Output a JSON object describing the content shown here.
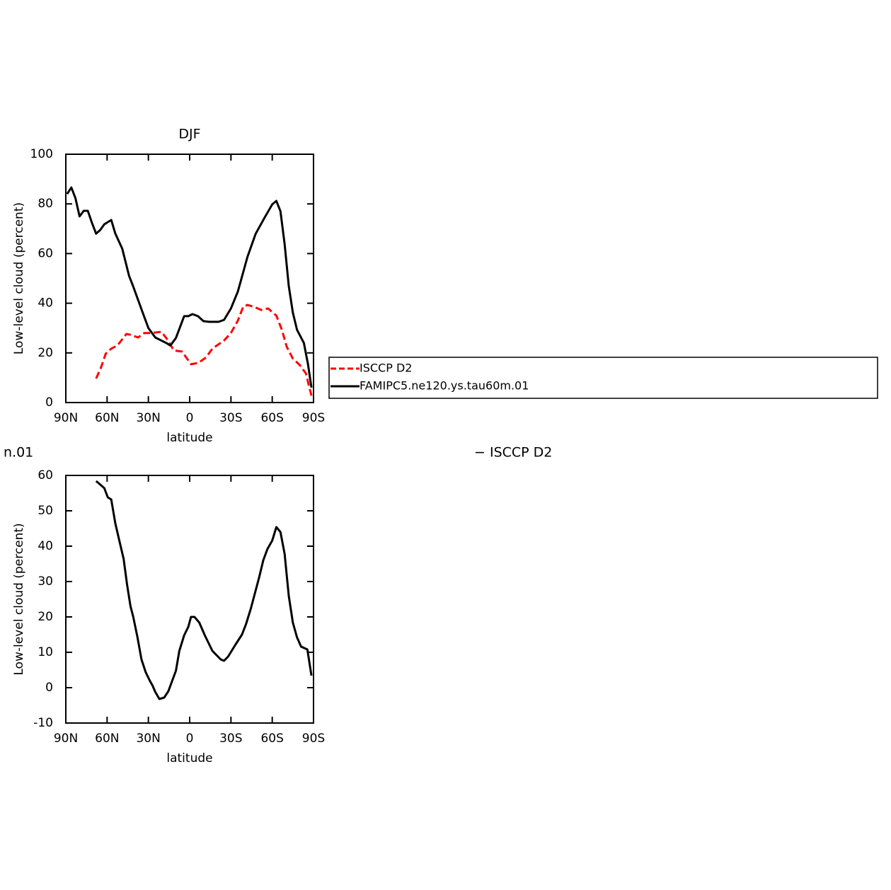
{
  "chart_data": [
    {
      "type": "line",
      "title": "DJF",
      "xlabel": "latitude",
      "ylabel": "Low-level cloud (percent)",
      "xlim": [
        90,
        -90
      ],
      "xticks": [
        {
          "value": 90,
          "label": "90N"
        },
        {
          "value": 60,
          "label": "60N"
        },
        {
          "value": 30,
          "label": "30N"
        },
        0,
        {
          "value": -30,
          "label": "30S"
        },
        {
          "value": -60,
          "label": "60S"
        },
        {
          "value": -90,
          "label": "90S"
        }
      ],
      "ylim": [
        0,
        100
      ],
      "yticks": [
        0,
        20,
        40,
        60,
        80,
        100
      ],
      "series": [
        {
          "name": "ISCCP D2",
          "color": "#ff0000",
          "linestyle": "dashed",
          "x": [
            68,
            64.5,
            61,
            57,
            52.5,
            46,
            43,
            37.5,
            33,
            28,
            20.5,
            16.5,
            11.5,
            5.5,
            -1,
            -6.5,
            -12,
            -16.5,
            -25,
            -30,
            -35,
            -39,
            -42,
            -47,
            -52,
            -57,
            -63,
            -67,
            -70.5,
            -75,
            -80,
            -84.5,
            -87,
            -88.5
          ],
          "values": [
            9.7,
            14,
            19.7,
            21.7,
            23,
            27.6,
            27.3,
            26.2,
            28,
            28,
            28.5,
            25.6,
            21,
            20.5,
            15.4,
            16,
            18.2,
            21.7,
            25,
            28,
            33,
            38.7,
            39.3,
            38.5,
            37.3,
            37.9,
            35,
            29.3,
            22.5,
            17.7,
            15.1,
            11.7,
            6,
            2.8
          ]
        },
        {
          "name": "FAMIPC5.ne120.ys.tau60m.01",
          "color": "#000000",
          "linestyle": "solid",
          "x": [
            89,
            86,
            83,
            80,
            77,
            74,
            71,
            68,
            65,
            62,
            57,
            54,
            49,
            44,
            41,
            34,
            30,
            25,
            17,
            14,
            10,
            4,
            1,
            -2,
            -6,
            -10,
            -14,
            -21,
            -25,
            -30,
            -35,
            -42,
            -48,
            -55,
            -60,
            -63,
            -66,
            -69,
            -72,
            -75,
            -78,
            -83,
            -86,
            -88.5
          ],
          "values": [
            84,
            86.6,
            82.3,
            75,
            77.2,
            77.2,
            72.4,
            68,
            69.5,
            71.8,
            73.5,
            68,
            62,
            51,
            46.7,
            36,
            30,
            26.2,
            24,
            23,
            26,
            34.8,
            34.8,
            35.6,
            34.8,
            32.8,
            32.5,
            32.5,
            33.3,
            37.9,
            44.7,
            58.7,
            68,
            75,
            79.8,
            81.2,
            77,
            63.8,
            47,
            36.2,
            29.3,
            24,
            15.4,
            6
          ]
        }
      ]
    },
    {
      "type": "line",
      "annotations": [
        "n.01",
        "− ISCCP D2"
      ],
      "xlabel": "latitude",
      "ylabel": "Low-level cloud (percent)",
      "xlim": [
        90,
        -90
      ],
      "xticks": [
        {
          "value": 90,
          "label": "90N"
        },
        {
          "value": 60,
          "label": "60N"
        },
        {
          "value": 30,
          "label": "30N"
        },
        0,
        {
          "value": -30,
          "label": "30S"
        },
        {
          "value": -60,
          "label": "60S"
        },
        {
          "value": -90,
          "label": "90S"
        }
      ],
      "ylim": [
        -10,
        60
      ],
      "yticks": [
        -10,
        0,
        10,
        20,
        30,
        40,
        50,
        60
      ],
      "series": [
        {
          "color": "#000000",
          "linestyle": "solid",
          "x": [
            68,
            65.5,
            62,
            59.5,
            57,
            54,
            51,
            48,
            45.5,
            43,
            41,
            38,
            35,
            32,
            29,
            27,
            25,
            22,
            18.5,
            15.5,
            10,
            7.5,
            4,
            1,
            -1,
            -3.5,
            -7,
            -11,
            -16.5,
            -22.5,
            -25,
            -28,
            -33,
            -38,
            -41,
            -44.5,
            -50.5,
            -53.5,
            -56.5,
            -60,
            -63,
            -66,
            -69,
            -72,
            -75,
            -78,
            -81,
            -85.5,
            -88.5
          ],
          "values": [
            58.4,
            57.6,
            56.4,
            53.8,
            53.2,
            46.4,
            41.4,
            36.4,
            29.2,
            23,
            20,
            14.4,
            8,
            4.4,
            2,
            0.6,
            -1.2,
            -3.2,
            -2.8,
            -1,
            4.8,
            10.4,
            14.8,
            17.2,
            20,
            20,
            18.4,
            14.8,
            10.4,
            8,
            7.6,
            8.8,
            12,
            15,
            18,
            22.4,
            31.2,
            36,
            39.2,
            41.6,
            45.4,
            44,
            37.8,
            26,
            18.4,
            14.2,
            11.6,
            10.8,
            3.4
          ]
        }
      ]
    }
  ]
}
